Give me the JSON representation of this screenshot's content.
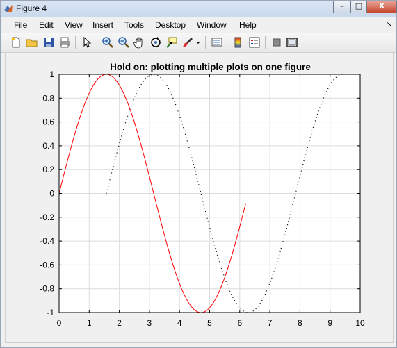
{
  "window": {
    "title": "Figure 4",
    "controls": {
      "minimize": "–",
      "maximize": "□",
      "close": "X"
    }
  },
  "menu": {
    "items": [
      "File",
      "Edit",
      "View",
      "Insert",
      "Tools",
      "Desktop",
      "Window",
      "Help"
    ],
    "overflow_arrow": "↘"
  },
  "toolbar": {
    "buttons": [
      "new-figure",
      "open-file",
      "save",
      "print",
      "edit-plot",
      "zoom-in",
      "zoom-out",
      "pan",
      "rotate-3d",
      "data-cursor",
      "brush",
      "brush-dropdown",
      "link-plot",
      "insert-colorbar",
      "insert-legend",
      "hide-plot-tools",
      "show-plot-tools"
    ]
  },
  "chart_data": {
    "type": "line",
    "title": "Hold on: plotting multiple plots on one figure",
    "xlabel": "",
    "ylabel": "",
    "xlim": [
      0,
      10
    ],
    "ylim": [
      -1,
      1
    ],
    "xticks": [
      "0",
      "1",
      "2",
      "3",
      "4",
      "5",
      "6",
      "7",
      "8",
      "9",
      "10"
    ],
    "yticks": [
      "1",
      "0.8",
      "0.6",
      "0.4",
      "0.2",
      "0",
      "-0.2",
      "-0.4",
      "-0.6",
      "-0.8",
      "-1"
    ],
    "grid": true,
    "series": [
      {
        "function": "sin(x)",
        "x_range": [
          0,
          6.2
        ],
        "color": "#ff0000",
        "style": "solid"
      },
      {
        "function": "sin(x - pi/2) shifted; -cos(x)",
        "x_range": [
          1.57,
          9.42
        ],
        "color": "#000000",
        "style": "dotted"
      }
    ]
  }
}
